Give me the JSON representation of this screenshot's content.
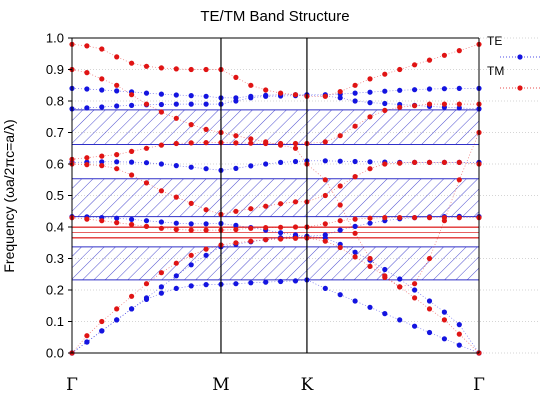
{
  "chart_data": {
    "type": "scatter",
    "title": "TE/TM Band Structure",
    "ylabel": "Frequency (ωa/2πc=a/λ)",
    "xlabel": "",
    "ylim": [
      0,
      1.0
    ],
    "yticks": [
      "0.0",
      "0.1",
      "0.2",
      "0.3",
      "0.4",
      "0.5",
      "0.6",
      "0.7",
      "0.8",
      "0.9",
      "1.0"
    ],
    "xticks": [
      {
        "label": "Γ",
        "x": 0
      },
      {
        "label": "M",
        "x": 1
      },
      {
        "label": "K",
        "x": 1.577
      },
      {
        "label": "Γ",
        "x": 2.732
      }
    ],
    "vlines": [
      1,
      1.577
    ],
    "grid": "dotted horizontal",
    "legend": "right",
    "colors": {
      "TE": "#1414e0",
      "TM": "#e01414",
      "TE_gap": "#3030c8",
      "TM_gap": "#e03030"
    },
    "band_gaps": [
      {
        "series": "TE",
        "from": 0.232,
        "to": 0.337
      },
      {
        "series": "TE",
        "from": 0.433,
        "to": 0.553
      },
      {
        "series": "TE",
        "from": 0.662,
        "to": 0.772
      },
      {
        "series": "TM",
        "from": 0.365,
        "to": 0.4
      }
    ],
    "kpoints": [
      0.0,
      0.1,
      0.2,
      0.3,
      0.4,
      0.5,
      0.6,
      0.7,
      0.8,
      0.9,
      1.0,
      1.1,
      1.2,
      1.3,
      1.4,
      1.5,
      1.577,
      1.7,
      1.8,
      1.9,
      2.0,
      2.1,
      2.2,
      2.3,
      2.4,
      2.5,
      2.6,
      2.732
    ],
    "series": [
      {
        "name": "TE",
        "bands": [
          [
            0.0,
            0.035,
            0.07,
            0.105,
            0.14,
            0.17,
            0.19,
            0.205,
            0.213,
            0.217,
            0.218,
            0.22,
            0.223,
            0.225,
            0.227,
            0.229,
            0.232,
            0.205,
            0.185,
            0.165,
            0.145,
            0.125,
            0.105,
            0.085,
            0.065,
            0.045,
            0.025,
            0.0
          ],
          [
            0.0,
            0.035,
            0.07,
            0.105,
            0.14,
            0.175,
            0.21,
            0.245,
            0.28,
            0.31,
            0.337,
            0.345,
            0.353,
            0.36,
            0.366,
            0.371,
            0.37,
            0.365,
            0.345,
            0.32,
            0.295,
            0.265,
            0.235,
            0.2,
            0.165,
            0.13,
            0.09,
            0.0
          ],
          [
            0.433,
            0.432,
            0.43,
            0.428,
            0.424,
            0.42,
            0.416,
            0.412,
            0.41,
            0.41,
            0.411,
            0.405,
            0.398,
            0.39,
            0.382,
            0.375,
            0.37,
            0.375,
            0.39,
            0.402,
            0.412,
            0.42,
            0.426,
            0.43,
            0.432,
            0.433,
            0.434,
            0.433
          ],
          [
            0.605,
            0.606,
            0.607,
            0.607,
            0.606,
            0.604,
            0.6,
            0.595,
            0.59,
            0.585,
            0.58,
            0.586,
            0.594,
            0.6,
            0.605,
            0.608,
            0.61,
            0.61,
            0.609,
            0.608,
            0.607,
            0.606,
            0.605,
            0.605,
            0.605,
            0.605,
            0.605,
            0.605
          ],
          [
            0.775,
            0.778,
            0.781,
            0.784,
            0.786,
            0.788,
            0.789,
            0.79,
            0.79,
            0.79,
            0.79,
            0.8,
            0.81,
            0.815,
            0.816,
            0.817,
            0.817,
            0.816,
            0.81,
            0.8,
            0.795,
            0.792,
            0.789,
            0.786,
            0.783,
            0.78,
            0.778,
            0.775
          ],
          [
            0.84,
            0.838,
            0.835,
            0.832,
            0.829,
            0.825,
            0.822,
            0.819,
            0.817,
            0.815,
            0.81,
            0.81,
            0.815,
            0.818,
            0.82,
            0.82,
            0.82,
            0.82,
            0.822,
            0.825,
            0.828,
            0.831,
            0.834,
            0.836,
            0.838,
            0.839,
            0.84,
            0.84
          ]
        ]
      },
      {
        "name": "TM",
        "bands": [
          [
            0.0,
            0.055,
            0.1,
            0.14,
            0.18,
            0.22,
            0.255,
            0.285,
            0.31,
            0.33,
            0.343,
            0.35,
            0.355,
            0.36,
            0.362,
            0.364,
            0.365,
            0.355,
            0.335,
            0.305,
            0.275,
            0.245,
            0.21,
            0.175,
            0.14,
            0.105,
            0.06,
            0.0
          ],
          [
            0.43,
            0.425,
            0.42,
            0.414,
            0.408,
            0.402,
            0.396,
            0.392,
            0.39,
            0.39,
            0.39,
            0.392,
            0.396,
            0.398,
            0.399,
            0.4,
            0.4,
            0.41,
            0.42,
            0.425,
            0.428,
            0.43,
            0.43,
            0.43,
            0.43,
            0.43,
            0.43,
            0.43
          ],
          [
            0.6,
            0.598,
            0.595,
            0.585,
            0.565,
            0.54,
            0.515,
            0.495,
            0.475,
            0.455,
            0.44,
            0.45,
            0.458,
            0.466,
            0.474,
            0.48,
            0.48,
            0.5,
            0.53,
            0.56,
            0.585,
            0.6,
            0.603,
            0.605,
            0.605,
            0.605,
            0.605,
            0.6
          ],
          [
            0.615,
            0.62,
            0.625,
            0.63,
            0.64,
            0.65,
            0.66,
            0.665,
            0.667,
            0.668,
            0.668,
            0.667,
            0.666,
            0.665,
            0.665,
            0.665,
            0.665,
            0.67,
            0.69,
            0.72,
            0.75,
            0.77,
            0.78,
            0.785,
            0.79,
            0.79,
            0.79,
            0.79
          ],
          [
            0.9,
            0.89,
            0.87,
            0.85,
            0.82,
            0.79,
            0.765,
            0.745,
            0.725,
            0.71,
            0.7,
            0.69,
            0.68,
            0.67,
            0.66,
            0.65,
            0.6,
            0.55,
            0.47,
            0.38,
            0.3,
            0.24,
            0.21,
            0.22,
            0.3,
            0.42,
            0.55,
            0.7
          ],
          [
            0.98,
            0.975,
            0.965,
            0.94,
            0.92,
            0.91,
            0.905,
            0.902,
            0.9,
            0.9,
            0.9,
            0.875,
            0.85,
            0.835,
            0.825,
            0.82,
            0.815,
            0.815,
            0.83,
            0.85,
            0.87,
            0.885,
            0.9,
            0.915,
            0.93,
            0.945,
            0.96,
            0.98
          ]
        ]
      }
    ]
  }
}
